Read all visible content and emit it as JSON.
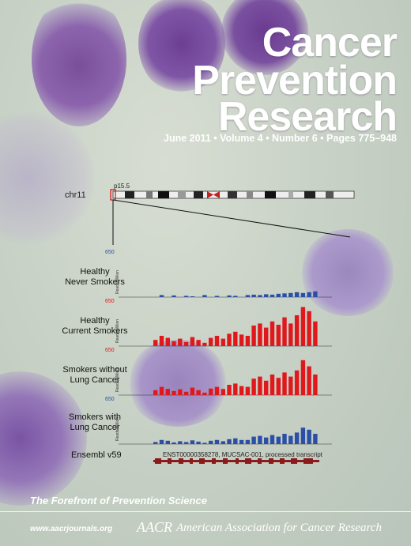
{
  "cover": {
    "title_line1": "Cancer",
    "title_line2": "Prevention",
    "title_line3": "Research",
    "issue": "June 2011 • Volume 4 • Number 6 • Pages 775–948",
    "tagline": "The Forefront of Prevention Science",
    "url": "www.aacrjournals.org",
    "publisher_logo": "AACR",
    "publisher": "American Association for Cancer Research"
  },
  "figure": {
    "chromosome": "chr11",
    "band": "p15.5",
    "ensembl_label": "Ensembl v59",
    "transcript": "ENST00000358278, MUCSAC-001, processed transcript",
    "ylabel": "Reads/Million",
    "lanes": [
      {
        "label_line1": "Healthy",
        "label_line2": "Never Smokers",
        "tick": "650",
        "color": "#2b4fa8",
        "values": [
          0,
          0.05,
          0,
          0.04,
          0,
          0.03,
          0.02,
          0,
          0.05,
          0,
          0.03,
          0,
          0.04,
          0.03,
          0,
          0.05,
          0.06,
          0.05,
          0.07,
          0.06,
          0.08,
          0.09,
          0.1,
          0.12,
          0.1,
          0.12,
          0.14
        ]
      },
      {
        "label_line1": "Healthy",
        "label_line2": "Current Smokers",
        "tick": "650",
        "color": "#e0181c",
        "values": [
          0.15,
          0.25,
          0.2,
          0.12,
          0.18,
          0.1,
          0.22,
          0.15,
          0.08,
          0.2,
          0.25,
          0.18,
          0.3,
          0.35,
          0.28,
          0.25,
          0.5,
          0.55,
          0.45,
          0.6,
          0.52,
          0.7,
          0.55,
          0.75,
          0.95,
          0.85,
          0.6
        ]
      },
      {
        "label_line1": "Smokers without",
        "label_line2": "Lung Cancer",
        "tick": "650",
        "color": "#e0181c",
        "values": [
          0.12,
          0.2,
          0.15,
          0.1,
          0.14,
          0.08,
          0.18,
          0.12,
          0.06,
          0.16,
          0.2,
          0.15,
          0.25,
          0.28,
          0.22,
          0.2,
          0.4,
          0.45,
          0.35,
          0.5,
          0.42,
          0.55,
          0.45,
          0.6,
          0.85,
          0.7,
          0.5
        ]
      },
      {
        "label_line1": "Smokers with",
        "label_line2": "Lung Cancer",
        "tick": "650",
        "color": "#2b4fa8",
        "values": [
          0.05,
          0.1,
          0.08,
          0.04,
          0.07,
          0.05,
          0.09,
          0.06,
          0.03,
          0.08,
          0.1,
          0.07,
          0.12,
          0.14,
          0.1,
          0.1,
          0.18,
          0.2,
          0.16,
          0.22,
          0.18,
          0.25,
          0.2,
          0.28,
          0.4,
          0.35,
          0.25
        ]
      }
    ]
  }
}
